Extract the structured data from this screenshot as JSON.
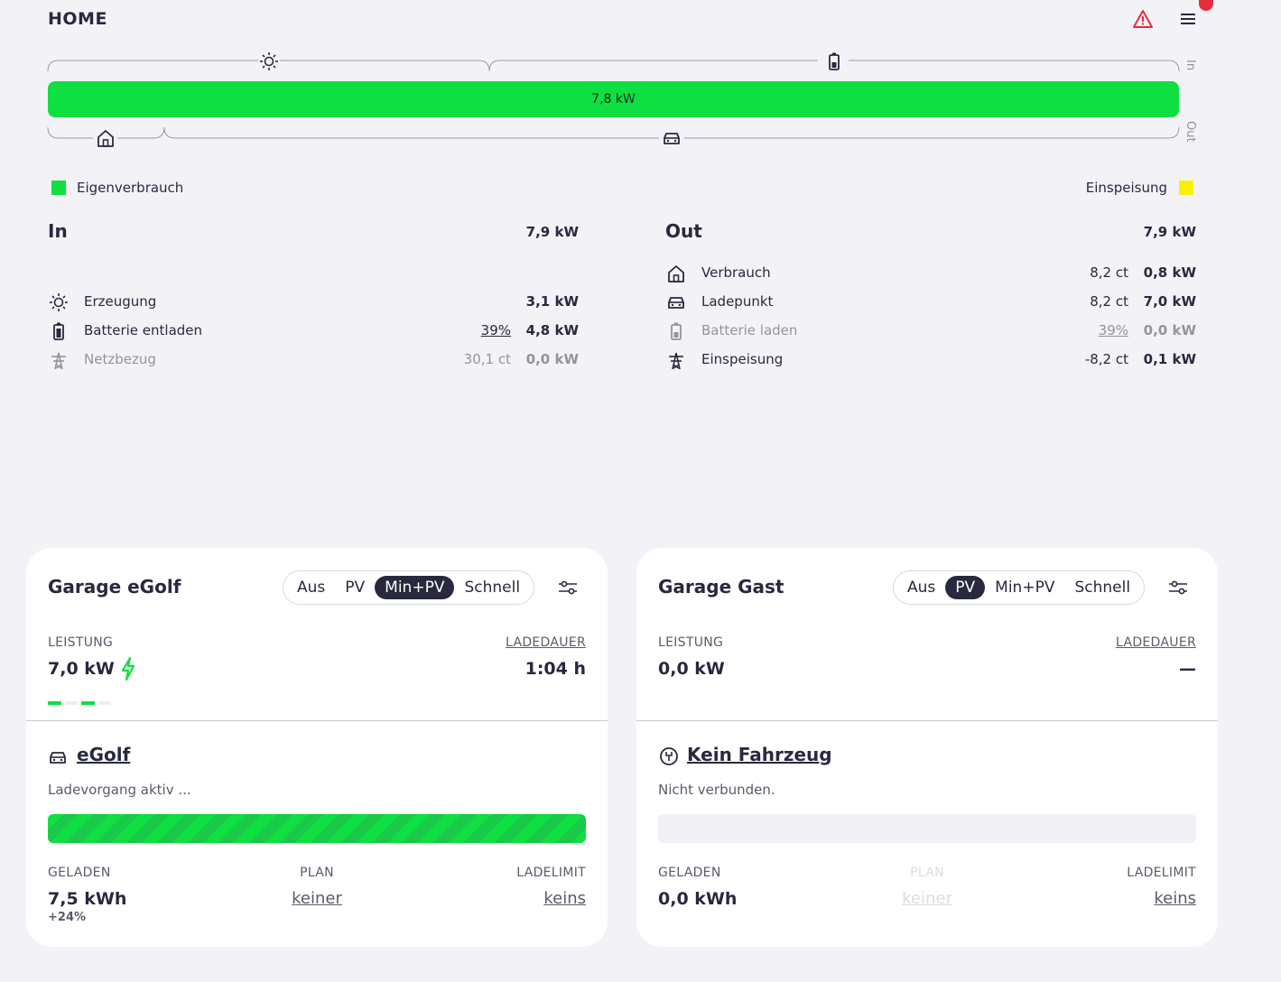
{
  "header": {
    "title": "HOME",
    "warning_icon": "warning-triangle-icon",
    "menu_icon": "hamburger-menu-icon"
  },
  "flow": {
    "bar_value": "7,8 kW",
    "in_label": "In",
    "out_label": "Out",
    "colors": {
      "self_consumption": "#0fdf40",
      "feed_in": "#faf000"
    }
  },
  "legend": {
    "left": "Eigenverbrauch",
    "right": "Einspeisung"
  },
  "in": {
    "title": "In",
    "total": "7,9 kW",
    "rows": [
      {
        "label": "Erzeugung",
        "sub": "",
        "value": "3,1 kW",
        "icon": "sun-icon"
      },
      {
        "label": "Batterie entladen",
        "sub": "39%",
        "value": "4,8 kW",
        "icon": "battery-icon"
      },
      {
        "label": "Netzbezug",
        "sub": "30,1 ct",
        "value": "0,0 kW",
        "icon": "grid-tower-icon"
      }
    ]
  },
  "out": {
    "title": "Out",
    "total": "7,9 kW",
    "rows": [
      {
        "label": "Verbrauch",
        "sub": "8,2 ct",
        "value": "0,8 kW",
        "icon": "house-icon"
      },
      {
        "label": "Ladepunkt",
        "sub": "8,2 ct",
        "value": "7,0 kW",
        "icon": "car-icon"
      },
      {
        "label": "Batterie laden",
        "sub": "39%",
        "value": "0,0 kW",
        "icon": "battery-icon"
      },
      {
        "label": "Einspeisung",
        "sub": "-8,2 ct",
        "value": "0,1 kW",
        "icon": "grid-tower-icon"
      }
    ]
  },
  "loadpoints": [
    {
      "title": "Garage eGolf",
      "modes": [
        "Aus",
        "PV",
        "Min+PV",
        "Schnell"
      ],
      "active_mode": "Min+PV",
      "power_label": "LEISTUNG",
      "power_value": "7,0 kW",
      "duration_label": "LADEDAUER",
      "duration_value": "1:04 h",
      "vehicle": "eGolf",
      "status": "Ladevorgang aktiv ...",
      "charged_label": "GELADEN",
      "charged_value": "7,5 kWh",
      "charged_delta": "+24%",
      "plan_label": "PLAN",
      "plan_value": "keiner",
      "limit_label": "LADELIMIT",
      "limit_value": "keins",
      "soc_fraction": 1.0
    },
    {
      "title": "Garage Gast",
      "modes": [
        "Aus",
        "PV",
        "Min+PV",
        "Schnell"
      ],
      "active_mode": "PV",
      "power_label": "LEISTUNG",
      "power_value": "0,0 kW",
      "duration_label": "LADEDAUER",
      "duration_value": "—",
      "vehicle": "Kein Fahrzeug",
      "status": "Nicht verbunden.",
      "charged_label": "GELADEN",
      "charged_value": "0,0 kWh",
      "plan_label": "PLAN",
      "plan_value": "keiner",
      "limit_label": "LADELIMIT",
      "limit_value": "keins",
      "soc_fraction": 0.0
    }
  ]
}
